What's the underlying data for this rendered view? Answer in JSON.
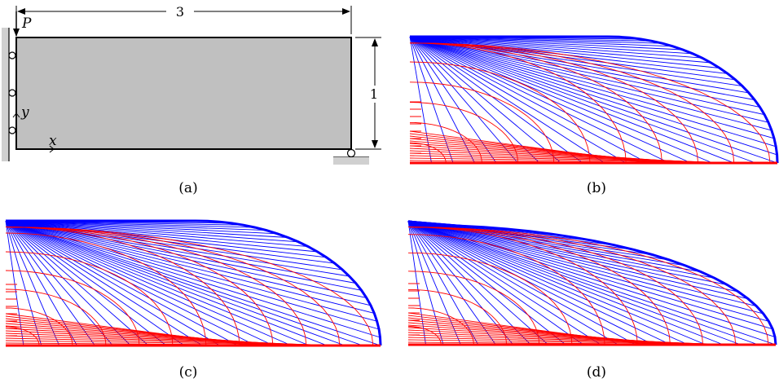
{
  "panel_a": {
    "load_label": "P",
    "length_label": "3",
    "height_label": "1",
    "x_axis_label": "x",
    "y_axis_label": "y",
    "caption": "(a)"
  },
  "panel_b": {
    "caption": "(b)"
  },
  "panel_c": {
    "caption": "(c)"
  },
  "panel_d": {
    "caption": "(d)"
  },
  "colors": {
    "beam_fill": "#c0c0c0",
    "support": "#d0d0d0",
    "tension_members": "#ff0000",
    "compression_members": "#0000ff"
  }
}
